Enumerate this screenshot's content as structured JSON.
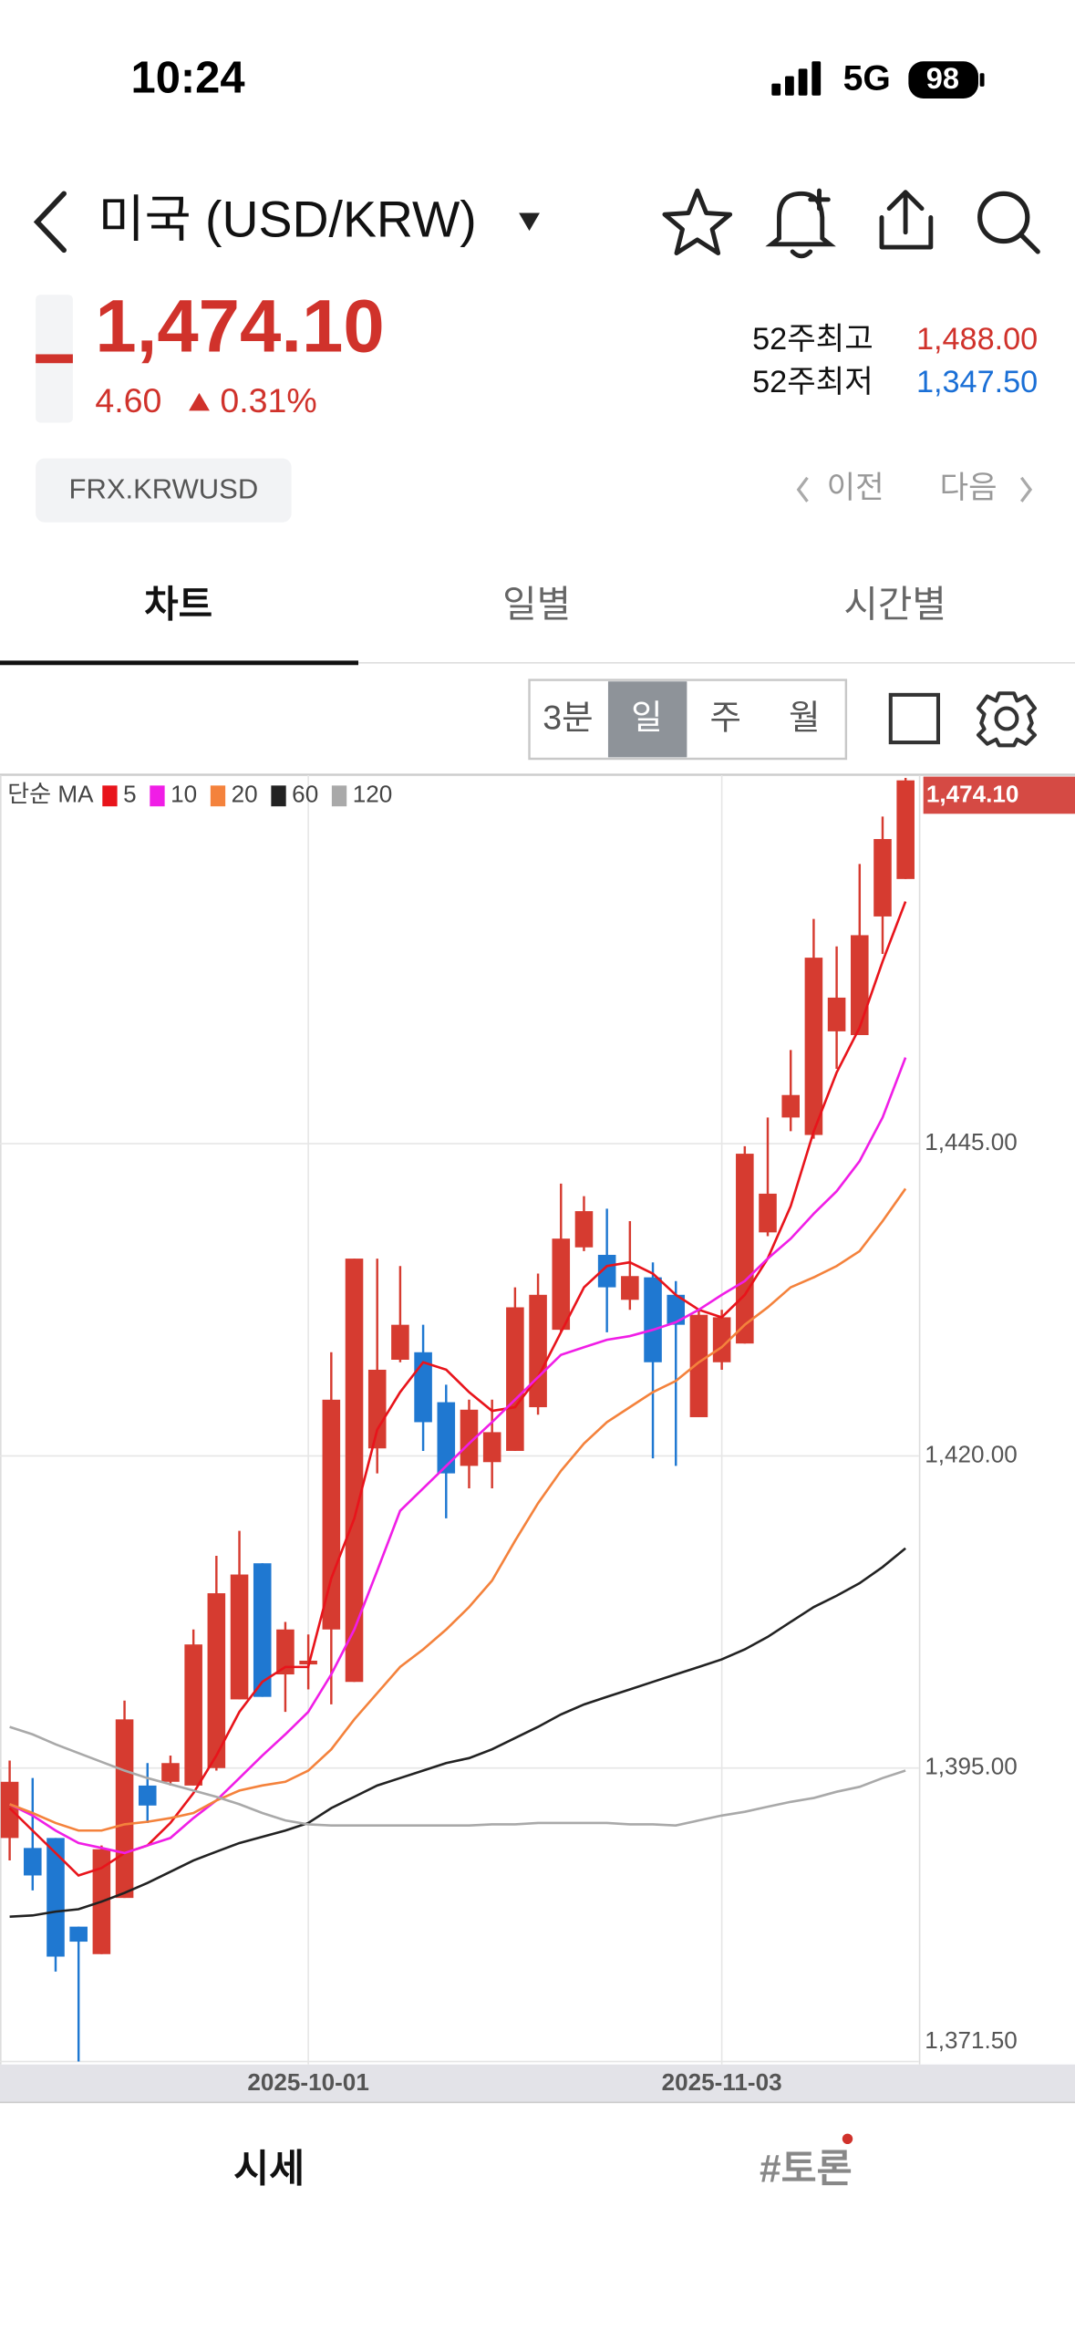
{
  "status_bar": {
    "time": "10:24",
    "network": "5G",
    "battery": "98"
  },
  "header": {
    "title": "미국 (USD/KRW)"
  },
  "quote": {
    "price": "1,474.10",
    "change": "4.60",
    "change_pct": "0.31%",
    "high_52w_label": "52주최고",
    "high_52w": "1,488.00",
    "low_52w_label": "52주최저",
    "low_52w": "1,347.50",
    "code": "FRX.KRWUSD",
    "prev": "이전",
    "next": "다음"
  },
  "tabs": [
    "차트",
    "일별",
    "시간별"
  ],
  "periods": [
    "3분",
    "일",
    "주",
    "월"
  ],
  "bottom_tabs": [
    "시세",
    "#토론"
  ],
  "chart_data": {
    "type": "candlestick",
    "legend_title": "단순 MA",
    "categories": [
      null,
      null,
      null,
      null,
      null,
      null,
      null,
      null,
      null,
      null,
      null,
      null,
      null,
      "2025-10-01",
      null,
      null,
      null,
      null,
      null,
      null,
      null,
      null,
      null,
      null,
      null,
      null,
      null,
      null,
      null,
      null,
      null,
      "2025-11-03",
      null,
      null,
      null,
      null,
      null,
      null,
      null,
      null
    ],
    "up_color": "#d63b30",
    "down_color": "#1f78d1",
    "open": [
      1389.4,
      1388.6,
      1389.4,
      1382.3,
      1380.1,
      1384.6,
      1393.6,
      1393.9,
      1393.6,
      1395.0,
      1400.5,
      1411.4,
      1402.5,
      1403.3,
      1406.1,
      1401.9,
      1420.6,
      1427.7,
      1428.3,
      1424.3,
      1419.2,
      1419.5,
      1420.4,
      1423.9,
      1430.1,
      1436.7,
      1436.1,
      1432.5,
      1434.3,
      1432.9,
      1423.1,
      1427.5,
      1429.0,
      1437.9,
      1447.1,
      1445.7,
      1454.0,
      1453.7,
      1463.2,
      1466.2
    ],
    "high": [
      1395.6,
      1394.2,
      1389.4,
      1382.3,
      1388.8,
      1400.4,
      1395.4,
      1396.0,
      1406.1,
      1412.0,
      1414.0,
      1411.4,
      1406.7,
      1405.7,
      1428.3,
      1435.8,
      1435.8,
      1435.2,
      1430.5,
      1425.7,
      1424.5,
      1424.5,
      1433.5,
      1434.6,
      1441.8,
      1440.8,
      1439.8,
      1438.8,
      1435.5,
      1434.0,
      1431.7,
      1431.7,
      1444.8,
      1447.1,
      1452.5,
      1463.0,
      1460.8,
      1467.4,
      1471.2,
      1474.3
    ],
    "low": [
      1387.6,
      1385.2,
      1378.7,
      1371.5,
      1380.1,
      1384.6,
      1390.6,
      1393.6,
      1393.6,
      1394.8,
      1400.5,
      1400.7,
      1399.5,
      1401.3,
      1400.1,
      1401.9,
      1418.6,
      1427.5,
      1420.4,
      1415.0,
      1417.4,
      1417.4,
      1420.4,
      1423.3,
      1429.9,
      1436.4,
      1429.9,
      1431.7,
      1419.8,
      1419.2,
      1423.1,
      1426.9,
      1429.0,
      1437.6,
      1446.0,
      1445.4,
      1451.0,
      1453.7,
      1460.2,
      1466.2
    ],
    "close": [
      1393.9,
      1386.4,
      1379.9,
      1381.1,
      1388.5,
      1398.9,
      1392.0,
      1395.4,
      1404.9,
      1409.0,
      1410.5,
      1400.7,
      1406.1,
      1403.6,
      1424.5,
      1435.8,
      1426.9,
      1430.5,
      1422.7,
      1418.6,
      1423.7,
      1421.9,
      1431.9,
      1432.9,
      1437.4,
      1439.6,
      1433.5,
      1434.4,
      1427.5,
      1430.5,
      1431.3,
      1431.1,
      1444.2,
      1441.0,
      1448.9,
      1459.9,
      1456.7,
      1461.7,
      1469.4,
      1474.1
    ],
    "series": [
      {
        "name": "5",
        "color": "#e8141b",
        "values": [
          1391.8,
          1390.0,
          1388.2,
          1386.4,
          1387.0,
          1388.2,
          1388.8,
          1390.6,
          1393.0,
          1396.0,
          1399.5,
          1401.9,
          1403.1,
          1403.1,
          1410.2,
          1415.0,
          1422.1,
          1425.1,
          1427.5,
          1426.9,
          1425.1,
          1423.6,
          1423.9,
          1426.3,
          1429.9,
          1433.5,
          1435.2,
          1435.5,
          1434.6,
          1432.9,
          1431.7,
          1431.1,
          1432.9,
          1435.8,
          1440.0,
          1446.0,
          1450.7,
          1454.3,
          1459.6,
          1464.4
        ]
      },
      {
        "name": "10",
        "color": "#f01ee6",
        "values": [
          1392.1,
          1391.2,
          1390.0,
          1389.0,
          1388.6,
          1388.2,
          1388.8,
          1389.4,
          1391.0,
          1392.4,
          1394.2,
          1396.0,
          1397.7,
          1399.5,
          1402.5,
          1406.1,
          1410.8,
          1415.6,
          1417.4,
          1419.2,
          1421.0,
          1422.7,
          1424.5,
          1426.3,
          1428.1,
          1428.7,
          1429.3,
          1429.6,
          1430.1,
          1430.7,
          1431.7,
          1432.9,
          1434.0,
          1435.8,
          1437.4,
          1439.4,
          1441.2,
          1443.6,
          1447.1,
          1451.9
        ]
      },
      {
        "name": "20",
        "color": "#f4823c",
        "values": [
          1392.1,
          1391.4,
          1390.6,
          1390.0,
          1390.0,
          1390.5,
          1390.7,
          1391.0,
          1391.4,
          1392.4,
          1393.2,
          1393.6,
          1393.9,
          1394.8,
          1396.5,
          1398.9,
          1401.0,
          1403.1,
          1404.5,
          1406.1,
          1407.9,
          1410.0,
          1413.2,
          1416.2,
          1418.8,
          1421.0,
          1422.7,
          1423.9,
          1425.1,
          1426.0,
          1427.5,
          1428.7,
          1430.5,
          1431.9,
          1433.5,
          1434.3,
          1435.2,
          1436.4,
          1438.8,
          1441.4
        ]
      },
      {
        "name": "60",
        "color": "#222222",
        "values": [
          1383.1,
          1383.2,
          1383.5,
          1383.7,
          1384.3,
          1385.0,
          1385.8,
          1386.7,
          1387.6,
          1388.3,
          1389.0,
          1389.5,
          1390.0,
          1390.6,
          1391.8,
          1392.7,
          1393.6,
          1394.2,
          1394.8,
          1395.4,
          1395.8,
          1396.5,
          1397.4,
          1398.3,
          1399.3,
          1400.1,
          1400.7,
          1401.3,
          1401.9,
          1402.5,
          1403.1,
          1403.7,
          1404.5,
          1405.5,
          1406.7,
          1407.9,
          1408.8,
          1409.8,
          1411.1,
          1412.6
        ]
      },
      {
        "name": "120",
        "color": "#a9a9a9",
        "values": [
          1398.3,
          1397.7,
          1396.9,
          1396.2,
          1395.5,
          1394.8,
          1394.2,
          1393.7,
          1393.2,
          1392.7,
          1392.1,
          1391.4,
          1390.8,
          1390.5,
          1390.4,
          1390.4,
          1390.4,
          1390.4,
          1390.4,
          1390.4,
          1390.4,
          1390.5,
          1390.5,
          1390.6,
          1390.6,
          1390.6,
          1390.6,
          1390.5,
          1390.5,
          1390.4,
          1390.8,
          1391.2,
          1391.5,
          1391.9,
          1392.3,
          1392.6,
          1393.1,
          1393.5,
          1394.2,
          1394.8
        ]
      }
    ],
    "current": {
      "value": 1474.1,
      "label": "1,474.10"
    },
    "ylim": [
      1371.5,
      1474.4
    ],
    "yticks": [
      {
        "value": 1371.5,
        "label": "1,371.50"
      },
      {
        "value": 1395,
        "label": "1,395.00"
      },
      {
        "value": 1420,
        "label": "1,420.00"
      },
      {
        "value": 1445,
        "label": "1,445.00"
      }
    ],
    "grid": true
  }
}
